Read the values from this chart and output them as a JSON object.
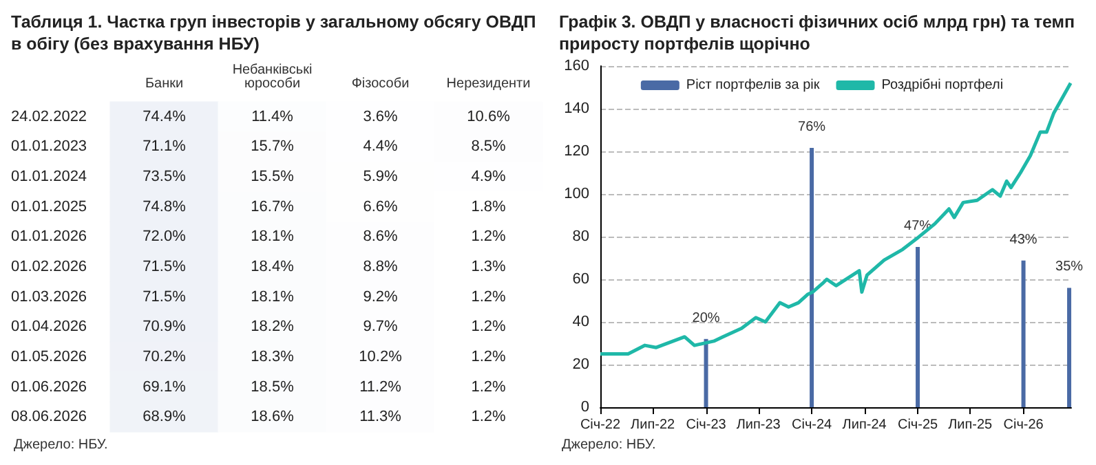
{
  "chart_data": [
    {
      "type": "heatmap",
      "title": "Таблиця 1. Частка груп інвесторів у загальному обсягу ОВДП в обігу (без врахування НБУ)",
      "categories": [
        "Банки",
        "Небанківські юрособи",
        "Фізособи",
        "Нерезиденти"
      ],
      "y_categories": [
        "24.02.2022",
        "01.01.2023",
        "01.01.2024",
        "01.01.2025",
        "01.01.2026",
        "01.02.2026",
        "01.03.2026",
        "01.04.2026",
        "01.05.2026",
        "01.06.2026",
        "08.06.2026"
      ],
      "cells": [
        [
          74.4,
          11.4,
          3.6,
          10.6
        ],
        [
          71.1,
          15.7,
          4.4,
          8.5
        ],
        [
          73.5,
          15.5,
          5.9,
          4.9
        ],
        [
          74.8,
          16.7,
          6.6,
          1.8
        ],
        [
          72.0,
          18.1,
          8.6,
          1.2
        ],
        [
          71.5,
          18.4,
          8.8,
          1.3
        ],
        [
          71.5,
          18.1,
          9.2,
          1.2
        ],
        [
          70.9,
          18.2,
          9.7,
          1.2
        ],
        [
          70.2,
          18.3,
          10.2,
          1.2
        ],
        [
          69.1,
          18.5,
          11.2,
          1.2
        ],
        [
          68.9,
          18.6,
          11.3,
          1.2
        ]
      ],
      "cell_labels": [
        [
          "74.4%",
          "11.4%",
          "3.6%",
          "10.6%"
        ],
        [
          "71.1%",
          "15.7%",
          "4.4%",
          "8.5%"
        ],
        [
          "73.5%",
          "15.5%",
          "5.9%",
          "4.9%"
        ],
        [
          "74.8%",
          "16.7%",
          "6.6%",
          "1.8%"
        ],
        [
          "72.0%",
          "18.1%",
          "8.6%",
          "1.2%"
        ],
        [
          "71.5%",
          "18.4%",
          "8.8%",
          "1.3%"
        ],
        [
          "71.5%",
          "18.1%",
          "9.2%",
          "1.2%"
        ],
        [
          "70.9%",
          "18.2%",
          "9.7%",
          "1.2%"
        ],
        [
          "70.2%",
          "18.3%",
          "10.2%",
          "1.2%"
        ],
        [
          "69.1%",
          "18.5%",
          "11.2%",
          "1.2%"
        ],
        [
          "68.9%",
          "18.6%",
          "11.3%",
          "1.2%"
        ]
      ],
      "annotations": [
        "Джерело: НБУ."
      ]
    },
    {
      "type": "line",
      "title": "Графік 3. ОВДП у власності фізичних осіб млрд грн) та темп приросту портфелів щорічно",
      "xlim": [
        "2022-01-01",
        "2026-06-15"
      ],
      "xticks": [
        {
          "value": "2022-01-01",
          "label": "Січ-22"
        },
        {
          "value": "2022-07-01",
          "label": "Лип-22"
        },
        {
          "value": "2023-01-01",
          "label": "Січ-23"
        },
        {
          "value": "2023-07-01",
          "label": "Лип-23"
        },
        {
          "value": "2024-01-01",
          "label": "Січ-24"
        },
        {
          "value": "2024-07-01",
          "label": "Лип-24"
        },
        {
          "value": "2025-01-01",
          "label": "Січ-25"
        },
        {
          "value": "2025-07-01",
          "label": "Лип-25"
        },
        {
          "value": "2026-01-01",
          "label": "Січ-26"
        }
      ],
      "ylim": [
        0,
        160
      ],
      "yticks": [
        0,
        20,
        40,
        60,
        80,
        100,
        120,
        140,
        160
      ],
      "y2lim": [
        0,
        100
      ],
      "grid": "y",
      "legend": "top",
      "series": [
        {
          "name": "Ріст портфелів за рік",
          "type": "bar",
          "axis": "y2",
          "color": "#4a6aa5",
          "x": [
            "2023-01-01",
            "2024-01-01",
            "2025-01-01",
            "2026-01-01",
            "2026-06-08"
          ],
          "values": [
            20,
            76,
            47,
            43,
            35
          ],
          "value_labels": [
            "20%",
            "76%",
            "47%",
            "43%",
            "35%"
          ]
        },
        {
          "name": "Роздрібні портфелі",
          "color": "#1fb8a8",
          "x": [
            "2022-01-01",
            "2022-04-07",
            "2022-06-04",
            "2022-07-13",
            "2022-10-19",
            "2022-11-22",
            "2023-01-28",
            "2023-02-28",
            "2023-05-04",
            "2023-06-22",
            "2023-07-25",
            "2023-09-13",
            "2023-10-13",
            "2023-11-16",
            "2023-12-19",
            "2024-01-04",
            "2024-02-07",
            "2024-02-22",
            "2024-03-25",
            "2024-06-13",
            "2024-06-22",
            "2024-07-10",
            "2024-09-07",
            "2024-11-10",
            "2024-12-28",
            "2025-03-01",
            "2025-04-19",
            "2025-05-07",
            "2025-06-07",
            "2025-07-25",
            "2025-09-16",
            "2025-10-13",
            "2025-11-04",
            "2025-11-19",
            "2025-12-22",
            "2026-01-25",
            "2026-02-28",
            "2026-03-22",
            "2026-04-16",
            "2026-06-13"
          ],
          "values": [
            25,
            25,
            29,
            28,
            33,
            29,
            31,
            33,
            37,
            42,
            40,
            49,
            47,
            49,
            53,
            54,
            58,
            60,
            57,
            64,
            54,
            62,
            69,
            74,
            79,
            86,
            93,
            89,
            96,
            97,
            102,
            99,
            106,
            103,
            110,
            118,
            129,
            129,
            138,
            152
          ]
        }
      ],
      "annotations": [
        "Джерело: НБУ."
      ]
    }
  ]
}
